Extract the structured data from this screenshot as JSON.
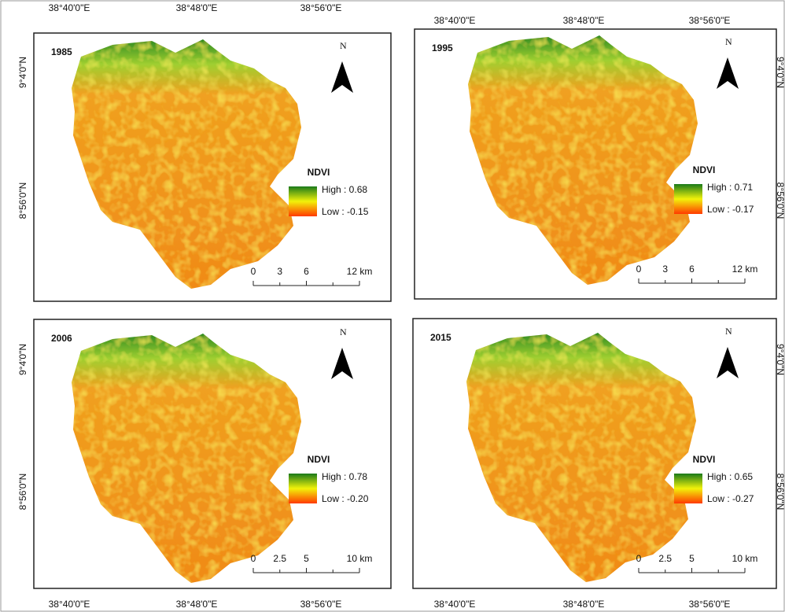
{
  "panels": [
    {
      "year": "1985",
      "legend_title": "NDVI",
      "high": "High : 0.68",
      "low": "Low : -0.15",
      "scale": [
        "0",
        "3",
        "6",
        "12 km"
      ]
    },
    {
      "year": "1995",
      "legend_title": "NDVI",
      "high": "High : 0.71",
      "low": "Low : -0.17",
      "scale": [
        "0",
        "3",
        "6",
        "12 km"
      ]
    },
    {
      "year": "2006",
      "legend_title": "NDVI",
      "high": "High : 0.78",
      "low": "Low : -0.20",
      "scale": [
        "0",
        "2.5",
        "5",
        "10 km"
      ]
    },
    {
      "year": "2015",
      "legend_title": "NDVI",
      "high": "High : 0.65",
      "low": "Low : -0.27",
      "scale": [
        "0",
        "2.5",
        "5",
        "10 km"
      ]
    }
  ],
  "north": "N",
  "lon_labels": [
    "38°40'0\"E",
    "38°48'0\"E",
    "38°56'0\"E"
  ],
  "lat_labels": [
    "9°4'0\"N",
    "8°56'0\"N"
  ]
}
